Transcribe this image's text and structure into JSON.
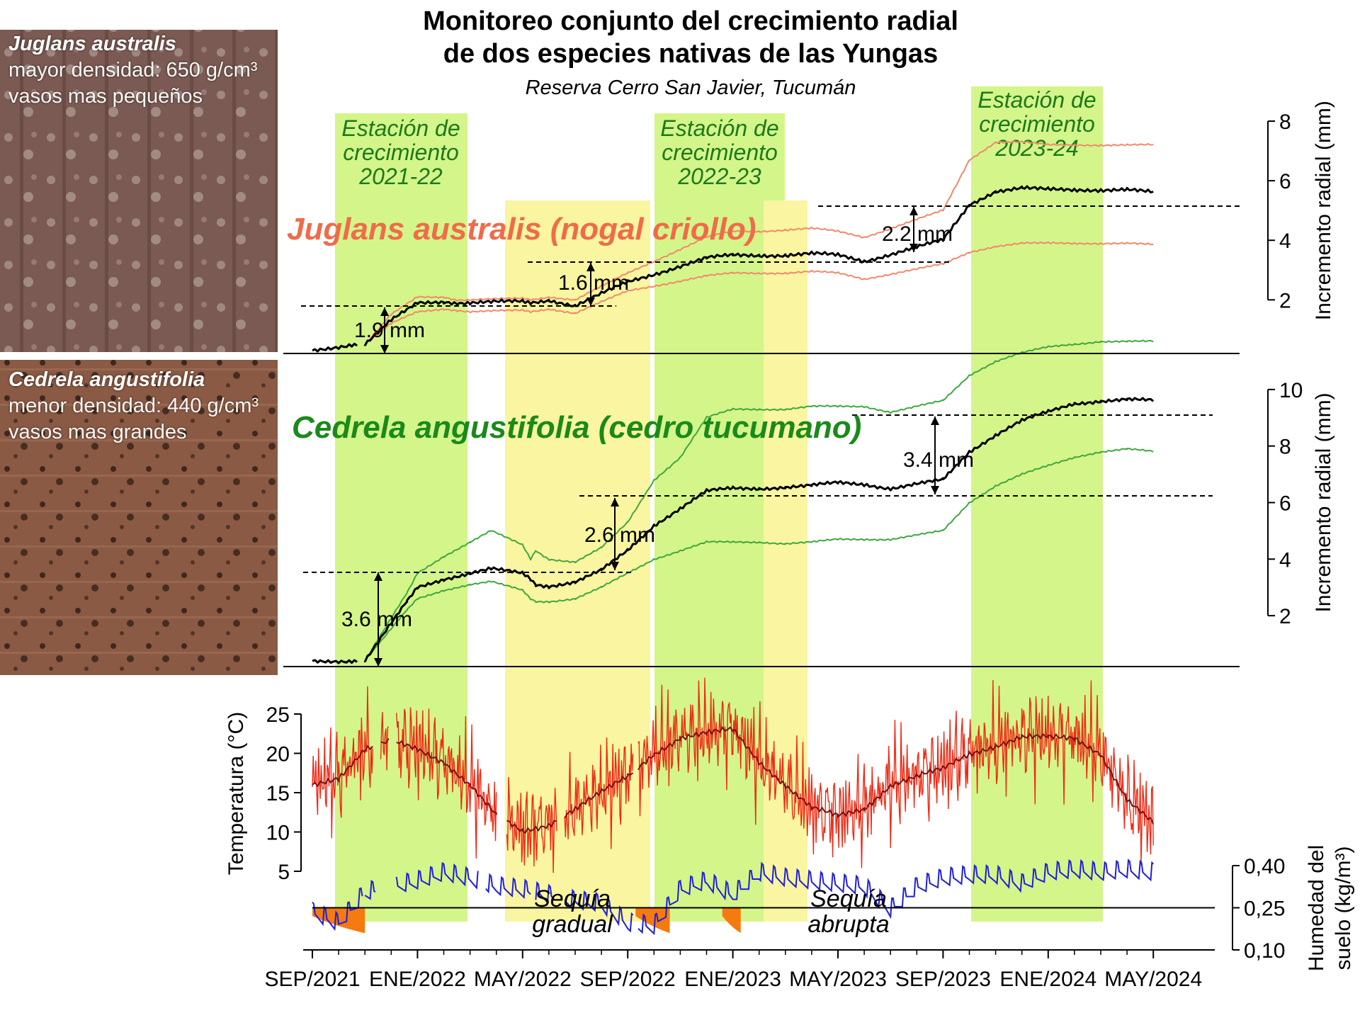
{
  "header": {
    "title_line1": "Monitoreo conjunto del crecimiento radial",
    "title_line2": "de dos especies nativas de las Yungas",
    "subtitle": "Reserva Cerro San Javier, Tucumán"
  },
  "photos": [
    {
      "species": "Juglans australis",
      "line1": "mayor densidad: 650 g/cm³",
      "line2": "vasos mas pequeños",
      "tone": "#7a5a52"
    },
    {
      "species": "Cedrela angustifolia",
      "line1": "menor densidad: 440 g/cm³",
      "line2": "vasos mas grandes",
      "tone": "#8a5a44"
    }
  ],
  "seasons": [
    {
      "label_lines": [
        "Estación de",
        "crecimiento",
        "2021-22"
      ]
    },
    {
      "label_lines": [
        "Estación de",
        "crecimiento",
        "2022-23"
      ]
    },
    {
      "label_lines": [
        "Estación de",
        "crecimiento",
        "2023-24"
      ]
    }
  ],
  "colors": {
    "season_green": "#d4f58a",
    "drought_yellow": "#f9f5a0",
    "juglans": "#ef6b4a",
    "juglans_band": "#f08a6a",
    "cedrela": "#1a8a1a",
    "cedrela_band": "#3ea83e",
    "temp_daily": "#ee2a14",
    "temp_mean": "#7a1010",
    "soil": "#1f1fd8",
    "deficit": "#f57a10",
    "season_text": "#1a7a1a"
  },
  "chart_data": [
    {
      "type": "line",
      "panel": "juglans",
      "series_label": "Juglans australis (nogal criollo)",
      "ylabel": "Incremento radial (mm)",
      "yticks": [
        2,
        4,
        6,
        8
      ],
      "ylim": [
        0.2,
        8.5
      ],
      "x_months": [
        0,
        1.5,
        2,
        3,
        4,
        5,
        5.5,
        6,
        8,
        8.3,
        9,
        10,
        12,
        15,
        16,
        17,
        18,
        19,
        20,
        21,
        24,
        25,
        26,
        27,
        28,
        29,
        30,
        31,
        32
      ],
      "x_month_note": "months after 2021-09-01",
      "series": [
        {
          "name": "mean",
          "values": [
            0.3,
            0.5,
            0.5,
            1.3,
            1.9,
            1.95,
            1.9,
            1.9,
            1.95,
            1.9,
            2.0,
            1.8,
            2.6,
            3.4,
            3.5,
            3.5,
            3.5,
            3.55,
            3.5,
            3.3,
            4.0,
            5.2,
            5.65,
            5.75,
            5.7,
            5.7,
            5.7,
            5.7,
            5.6
          ]
        },
        {
          "name": "upper",
          "values": [
            0.3,
            0.5,
            0.5,
            1.5,
            2.1,
            2.1,
            2.0,
            2.0,
            2.05,
            2.0,
            2.1,
            2.0,
            2.9,
            4.1,
            4.3,
            4.3,
            4.35,
            4.4,
            4.3,
            4.1,
            5.0,
            6.7,
            7.3,
            7.3,
            7.2,
            7.2,
            7.2,
            7.2,
            7.2
          ]
        },
        {
          "name": "lower",
          "values": [
            0.3,
            0.5,
            0.5,
            1.2,
            1.6,
            1.7,
            1.65,
            1.6,
            1.65,
            1.6,
            1.7,
            1.55,
            2.3,
            2.8,
            2.9,
            2.9,
            2.9,
            2.95,
            2.9,
            2.7,
            3.2,
            3.6,
            3.8,
            3.9,
            3.9,
            3.9,
            3.9,
            3.9,
            3.85
          ]
        }
      ],
      "gaps_months": [
        [
          1.7,
          2.0
        ],
        [
          8.5,
          8.6
        ],
        [
          12.2,
          12.3
        ]
      ],
      "annotations": [
        "1.9 mm",
        "1.6 mm",
        "2.2 mm"
      ]
    },
    {
      "type": "line",
      "panel": "cedrela",
      "series_label": "Cedrela angustifolia (cedro tucumano)",
      "ylabel": "Incremento radial (mm)",
      "yticks": [
        2,
        4,
        6,
        8,
        10
      ],
      "ylim": [
        0.2,
        12.0
      ],
      "x_months": [
        0,
        1.5,
        2,
        3.6,
        4,
        5,
        6,
        6.8,
        8,
        8.3,
        8.5,
        9,
        10,
        11,
        12,
        13,
        14,
        15,
        16,
        17,
        18,
        19,
        20,
        21,
        22,
        24,
        25,
        26,
        27,
        28,
        29,
        30,
        31,
        32
      ],
      "x_month_note": "months after 2021-09-01",
      "series": [
        {
          "name": "mean",
          "values": [
            0.4,
            0.4,
            0.4,
            2.5,
            3.0,
            3.3,
            3.5,
            3.65,
            3.5,
            3.3,
            3.1,
            3.05,
            3.2,
            3.6,
            4.3,
            5.2,
            5.8,
            6.4,
            6.5,
            6.5,
            6.55,
            6.6,
            6.7,
            6.65,
            6.5,
            6.8,
            7.8,
            8.4,
            8.9,
            9.2,
            9.5,
            9.6,
            9.65,
            9.6
          ]
        },
        {
          "name": "upper",
          "values": [
            0.4,
            0.4,
            0.4,
            2.8,
            3.5,
            4.1,
            4.6,
            5.0,
            4.5,
            4.0,
            4.3,
            4.0,
            3.9,
            4.4,
            5.3,
            6.8,
            7.6,
            9.0,
            9.3,
            9.3,
            9.3,
            9.4,
            9.4,
            9.4,
            9.2,
            9.6,
            10.5,
            11.0,
            11.3,
            11.5,
            11.6,
            11.7,
            11.7,
            11.7
          ]
        },
        {
          "name": "lower",
          "values": [
            0.4,
            0.4,
            0.4,
            2.2,
            2.6,
            2.9,
            3.1,
            3.2,
            2.9,
            2.6,
            2.5,
            2.5,
            2.6,
            3.0,
            3.5,
            4.0,
            4.3,
            4.6,
            4.6,
            4.6,
            4.55,
            4.6,
            4.7,
            4.7,
            4.7,
            5.0,
            6.0,
            6.6,
            7.0,
            7.3,
            7.6,
            7.8,
            7.9,
            7.8
          ]
        }
      ],
      "gaps_months": [
        [
          1.7,
          2.0
        ],
        [
          8.5,
          8.6
        ],
        [
          12.2,
          12.3
        ]
      ],
      "annotations": [
        "3.6 mm",
        "2.6 mm",
        "3.4 mm"
      ]
    },
    {
      "type": "line",
      "panel": "climate",
      "ylabel_left": "Temperatura (°C)",
      "yticks_left": [
        5,
        10,
        15,
        20,
        25
      ],
      "ylim_left": [
        5,
        26
      ],
      "ylabel_right": "Humedad del suelo (kg/m³)",
      "yticks_right": [
        "0,10",
        "0,25",
        "0,40"
      ],
      "ylim_right": [
        0.1,
        0.4
      ],
      "soil_threshold": 0.25,
      "x_months": [
        0,
        1,
        2,
        3,
        4,
        5,
        6,
        7,
        8,
        9,
        10,
        11,
        12,
        13,
        14,
        15,
        16,
        17,
        18,
        19,
        20,
        21,
        22,
        23,
        24,
        25,
        26,
        27,
        28,
        29,
        30,
        31,
        32
      ],
      "x_month_note": "months after 2021-09-01",
      "series": [
        {
          "name": "temp_mean",
          "values": [
            16,
            17,
            20.5,
            21.5,
            20.5,
            19,
            16,
            12,
            10,
            11,
            13,
            15,
            17,
            20,
            22,
            22.5,
            23,
            19,
            16,
            13,
            12,
            13,
            16,
            17,
            18,
            20,
            21,
            22,
            22,
            22,
            20,
            14,
            11
          ]
        },
        {
          "name": "soil",
          "values": [
            0.24,
            0.2,
            0.31,
            0.33,
            0.35,
            0.38,
            0.36,
            0.33,
            0.32,
            0.3,
            0.28,
            0.27,
            0.2,
            0.19,
            0.32,
            0.35,
            0.3,
            0.38,
            0.36,
            0.35,
            0.34,
            0.33,
            0.25,
            0.33,
            0.36,
            0.37,
            0.37,
            0.34,
            0.38,
            0.39,
            0.38,
            0.39,
            0.38
          ]
        }
      ],
      "annotations": [
        [
          "Sequía",
          "gradual"
        ],
        [
          "Sequía",
          "abrupta"
        ]
      ]
    }
  ],
  "x_axis": {
    "tick_labels": [
      "SEP/2021",
      "ENE/2022",
      "MAY/2022",
      "SEP/2022",
      "ENE/2023",
      "MAY/2023",
      "SEP/2023",
      "ENE/2024",
      "MAY/2024"
    ]
  }
}
